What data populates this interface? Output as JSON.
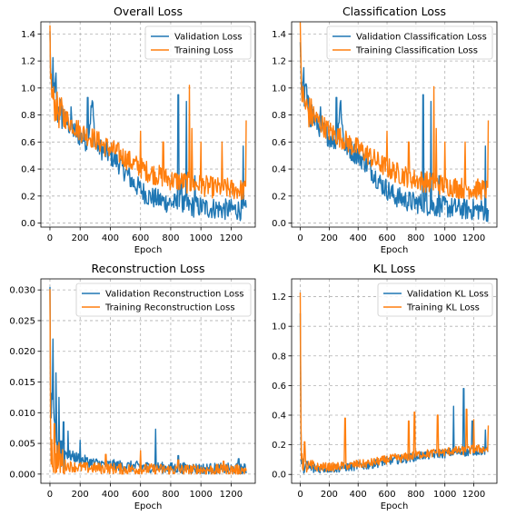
{
  "colors": {
    "validation": "#1f77b4",
    "training": "#ff7f0e"
  },
  "chart_data": [
    {
      "type": "line",
      "title": "Overall Loss",
      "xlabel": "Epoch",
      "ylabel": "",
      "xlim": [
        -60,
        1360
      ],
      "ylim": [
        -0.03,
        1.49
      ],
      "xticks": [
        0,
        200,
        400,
        600,
        800,
        1000,
        1200
      ],
      "xtick_labels": [
        "0",
        "200",
        "400",
        "600",
        "800",
        "1000",
        "1200"
      ],
      "yticks": [
        0.0,
        0.2,
        0.4,
        0.6,
        0.8,
        1.0,
        1.2,
        1.4
      ],
      "ytick_labels": [
        "0.0",
        "0.2",
        "0.4",
        "0.6",
        "0.8",
        "1.0",
        "1.2",
        "1.4"
      ],
      "grid": true,
      "legend_position": "top-right",
      "series": [
        {
          "name": "Validation Loss",
          "color": "#1f77b4",
          "x": [
            0,
            5,
            10,
            15,
            20,
            30,
            40,
            50,
            60,
            80,
            100,
            130,
            160,
            200,
            250,
            280,
            300,
            350,
            400,
            450,
            500,
            550,
            600,
            650,
            700,
            750,
            800,
            850,
            900,
            950,
            1000,
            1050,
            1100,
            1150,
            1200,
            1250,
            1290,
            1300
          ],
          "y": [
            1.38,
            1.15,
            0.95,
            0.9,
            1.18,
            0.88,
            1.05,
            0.82,
            0.85,
            0.8,
            0.76,
            0.72,
            0.68,
            0.64,
            0.6,
            0.9,
            0.58,
            0.54,
            0.5,
            0.45,
            0.38,
            0.3,
            0.25,
            0.2,
            0.18,
            0.16,
            0.15,
            0.14,
            0.13,
            0.12,
            0.12,
            0.11,
            0.11,
            0.1,
            0.1,
            0.1,
            0.09,
            0.09
          ],
          "spikes": [
            [
              850,
              0.95
            ],
            [
              905,
              0.9
            ],
            [
              870,
              0.33
            ],
            [
              960,
              0.35
            ],
            [
              1280,
              0.57
            ],
            [
              140,
              0.86
            ],
            [
              250,
              0.93
            ]
          ]
        },
        {
          "name": "Training Loss",
          "color": "#ff7f0e",
          "x": [
            0,
            5,
            10,
            15,
            20,
            30,
            40,
            50,
            60,
            80,
            100,
            130,
            160,
            200,
            250,
            300,
            350,
            400,
            450,
            500,
            550,
            600,
            650,
            700,
            750,
            800,
            850,
            900,
            950,
            1000,
            1050,
            1100,
            1150,
            1200,
            1250,
            1290,
            1300
          ],
          "y": [
            1.42,
            1.1,
            0.98,
            0.95,
            0.92,
            0.88,
            0.86,
            0.84,
            0.82,
            0.8,
            0.78,
            0.75,
            0.72,
            0.68,
            0.65,
            0.62,
            0.58,
            0.55,
            0.52,
            0.48,
            0.44,
            0.41,
            0.38,
            0.36,
            0.34,
            0.32,
            0.31,
            0.3,
            0.29,
            0.28,
            0.27,
            0.26,
            0.26,
            0.25,
            0.25,
            0.24,
            0.22
          ],
          "spikes": [
            [
              925,
              1.02
            ],
            [
              940,
              0.7
            ],
            [
              750,
              0.6
            ],
            [
              1140,
              0.6
            ],
            [
              1300,
              0.76
            ],
            [
              600,
              0.68
            ],
            [
              1000,
              0.6
            ]
          ]
        }
      ]
    },
    {
      "type": "line",
      "title": "Classification Loss",
      "xlabel": "Epoch",
      "ylabel": "",
      "xlim": [
        -60,
        1360
      ],
      "ylim": [
        -0.03,
        1.49
      ],
      "xticks": [
        0,
        200,
        400,
        600,
        800,
        1000,
        1200
      ],
      "xtick_labels": [
        "0",
        "200",
        "400",
        "600",
        "800",
        "1000",
        "1200"
      ],
      "yticks": [
        0.0,
        0.2,
        0.4,
        0.6,
        0.8,
        1.0,
        1.2,
        1.4
      ],
      "ytick_labels": [
        "0.0",
        "0.2",
        "0.4",
        "0.6",
        "0.8",
        "1.0",
        "1.2",
        "1.4"
      ],
      "grid": true,
      "legend_position": "top-right",
      "series": [
        {
          "name": "Validation Classification Loss",
          "color": "#1f77b4",
          "x": [
            0,
            5,
            10,
            15,
            20,
            30,
            40,
            50,
            60,
            80,
            100,
            130,
            160,
            200,
            250,
            280,
            300,
            350,
            400,
            450,
            500,
            550,
            600,
            650,
            700,
            750,
            800,
            850,
            900,
            950,
            1000,
            1050,
            1100,
            1150,
            1200,
            1250,
            1290,
            1300
          ],
          "y": [
            1.38,
            1.15,
            0.95,
            0.9,
            1.15,
            0.88,
            1.02,
            0.82,
            0.85,
            0.8,
            0.76,
            0.72,
            0.68,
            0.64,
            0.6,
            0.9,
            0.58,
            0.54,
            0.5,
            0.45,
            0.38,
            0.3,
            0.25,
            0.2,
            0.18,
            0.16,
            0.15,
            0.14,
            0.13,
            0.12,
            0.12,
            0.11,
            0.11,
            0.1,
            0.1,
            0.1,
            0.09,
            0.09
          ],
          "spikes": [
            [
              850,
              0.95
            ],
            [
              905,
              0.9
            ],
            [
              870,
              0.33
            ],
            [
              960,
              0.35
            ],
            [
              1280,
              0.57
            ],
            [
              140,
              0.86
            ],
            [
              250,
              0.93
            ]
          ]
        },
        {
          "name": "Training Classification Loss",
          "color": "#ff7f0e",
          "x": [
            0,
            5,
            10,
            15,
            20,
            30,
            40,
            50,
            60,
            80,
            100,
            130,
            160,
            200,
            250,
            300,
            350,
            400,
            450,
            500,
            550,
            600,
            650,
            700,
            750,
            800,
            850,
            900,
            950,
            1000,
            1050,
            1100,
            1150,
            1200,
            1250,
            1290,
            1300
          ],
          "y": [
            1.38,
            1.08,
            0.98,
            0.95,
            0.92,
            0.88,
            0.86,
            0.84,
            0.82,
            0.8,
            0.78,
            0.75,
            0.72,
            0.68,
            0.65,
            0.62,
            0.58,
            0.55,
            0.52,
            0.48,
            0.44,
            0.41,
            0.38,
            0.36,
            0.34,
            0.32,
            0.31,
            0.3,
            0.29,
            0.28,
            0.27,
            0.26,
            0.26,
            0.25,
            0.25,
            0.24,
            0.22
          ],
          "spikes": [
            [
              925,
              1.01
            ],
            [
              940,
              0.7
            ],
            [
              750,
              0.6
            ],
            [
              1140,
              0.6
            ],
            [
              1300,
              0.76
            ],
            [
              600,
              0.68
            ],
            [
              1000,
              0.6
            ]
          ]
        }
      ]
    },
    {
      "type": "line",
      "title": "Reconstruction Loss",
      "xlabel": "Epoch",
      "ylabel": "",
      "xlim": [
        -60,
        1360
      ],
      "ylim": [
        -0.0015,
        0.0318
      ],
      "xticks": [
        0,
        200,
        400,
        600,
        800,
        1000,
        1200
      ],
      "xtick_labels": [
        "0",
        "200",
        "400",
        "600",
        "800",
        "1000",
        "1200"
      ],
      "yticks": [
        0.0,
        0.005,
        0.01,
        0.015,
        0.02,
        0.025,
        0.03
      ],
      "ytick_labels": [
        "0.000",
        "0.005",
        "0.010",
        "0.015",
        "0.020",
        "0.025",
        "0.030"
      ],
      "grid": true,
      "legend_position": "top-right",
      "series": [
        {
          "name": "Validation Reconstruction Loss",
          "color": "#1f77b4",
          "x": [
            0,
            5,
            10,
            15,
            20,
            30,
            40,
            50,
            60,
            80,
            100,
            130,
            160,
            200,
            250,
            300,
            350,
            400,
            450,
            500,
            600,
            700,
            800,
            900,
            1000,
            1100,
            1200,
            1300
          ],
          "y": [
            0.027,
            0.012,
            0.01,
            0.009,
            0.008,
            0.007,
            0.006,
            0.005,
            0.0045,
            0.004,
            0.0035,
            0.003,
            0.0028,
            0.0025,
            0.002,
            0.0018,
            0.0016,
            0.0015,
            0.0014,
            0.0013,
            0.0012,
            0.0011,
            0.001,
            0.001,
            0.0009,
            0.0009,
            0.0009,
            0.0008
          ],
          "spikes": [
            [
              20,
              0.022
            ],
            [
              40,
              0.0165
            ],
            [
              60,
              0.0125
            ],
            [
              90,
              0.0085
            ],
            [
              120,
              0.007
            ],
            [
              200,
              0.0055
            ],
            [
              700,
              0.0073
            ],
            [
              850,
              0.003
            ],
            [
              1250,
              0.0025
            ]
          ]
        },
        {
          "name": "Training Reconstruction Loss",
          "color": "#ff7f0e",
          "x": [
            0,
            5,
            10,
            15,
            20,
            30,
            40,
            50,
            60,
            80,
            100,
            130,
            160,
            200,
            250,
            300,
            350,
            400,
            450,
            500,
            600,
            700,
            800,
            900,
            1000,
            1100,
            1200,
            1300
          ],
          "y": [
            0.0305,
            0.006,
            0.004,
            0.0035,
            0.003,
            0.0025,
            0.0022,
            0.002,
            0.0018,
            0.0016,
            0.0015,
            0.0013,
            0.0012,
            0.0011,
            0.001,
            0.001,
            0.0009,
            0.0009,
            0.0009,
            0.0008,
            0.0008,
            0.0008,
            0.0007,
            0.0007,
            0.0007,
            0.0007,
            0.0007,
            0.0007
          ],
          "spikes": [
            [
              30,
              0.0082
            ],
            [
              370,
              0.0032
            ],
            [
              600,
              0.0038
            ],
            [
              850,
              0.0023
            ],
            [
              1150,
              0.0021
            ]
          ]
        }
      ]
    },
    {
      "type": "line",
      "title": "KL Loss",
      "xlabel": "Epoch",
      "ylabel": "",
      "xlim": [
        -60,
        1360
      ],
      "ylim": [
        -0.06,
        1.32
      ],
      "xticks": [
        0,
        200,
        400,
        600,
        800,
        1000,
        1200
      ],
      "xtick_labels": [
        "0",
        "200",
        "400",
        "600",
        "800",
        "1000",
        "1200"
      ],
      "yticks": [
        0.0,
        0.2,
        0.4,
        0.6,
        0.8,
        1.0,
        1.2
      ],
      "ytick_labels": [
        "0.0",
        "0.2",
        "0.4",
        "0.6",
        "0.8",
        "1.0",
        "1.2"
      ],
      "grid": true,
      "legend_position": "top-right",
      "series": [
        {
          "name": "Validation KL Loss",
          "color": "#1f77b4",
          "x": [
            0,
            5,
            10,
            20,
            30,
            50,
            80,
            100,
            150,
            200,
            250,
            300,
            350,
            400,
            450,
            500,
            550,
            600,
            650,
            700,
            750,
            800,
            850,
            900,
            950,
            1000,
            1050,
            1100,
            1150,
            1200,
            1250,
            1300
          ],
          "y": [
            1.05,
            0.15,
            0.08,
            0.06,
            0.05,
            0.05,
            0.04,
            0.04,
            0.04,
            0.04,
            0.04,
            0.05,
            0.05,
            0.06,
            0.06,
            0.07,
            0.08,
            0.09,
            0.1,
            0.1,
            0.11,
            0.12,
            0.13,
            0.13,
            0.14,
            0.14,
            0.15,
            0.15,
            0.15,
            0.16,
            0.16,
            0.16
          ],
          "spikes": [
            [
              1130,
              0.58
            ],
            [
              1060,
              0.46
            ],
            [
              1190,
              0.36
            ],
            [
              1280,
              0.3
            ]
          ]
        },
        {
          "name": "Training KL Loss",
          "color": "#ff7f0e",
          "x": [
            0,
            5,
            10,
            20,
            30,
            50,
            80,
            100,
            150,
            200,
            250,
            300,
            350,
            400,
            450,
            500,
            550,
            600,
            650,
            700,
            750,
            800,
            850,
            900,
            950,
            1000,
            1050,
            1100,
            1150,
            1200,
            1250,
            1300
          ],
          "y": [
            1.26,
            0.2,
            0.1,
            0.07,
            0.06,
            0.05,
            0.05,
            0.05,
            0.05,
            0.05,
            0.05,
            0.06,
            0.06,
            0.07,
            0.07,
            0.08,
            0.09,
            0.1,
            0.11,
            0.11,
            0.12,
            0.13,
            0.14,
            0.14,
            0.15,
            0.15,
            0.16,
            0.16,
            0.16,
            0.17,
            0.17,
            0.17
          ],
          "spikes": [
            [
              30,
              0.22
            ],
            [
              310,
              0.38
            ],
            [
              750,
              0.36
            ],
            [
              790,
              0.42
            ],
            [
              950,
              0.4
            ],
            [
              1150,
              0.44
            ],
            [
              1200,
              0.37
            ],
            [
              1300,
              0.33
            ]
          ]
        }
      ]
    }
  ]
}
